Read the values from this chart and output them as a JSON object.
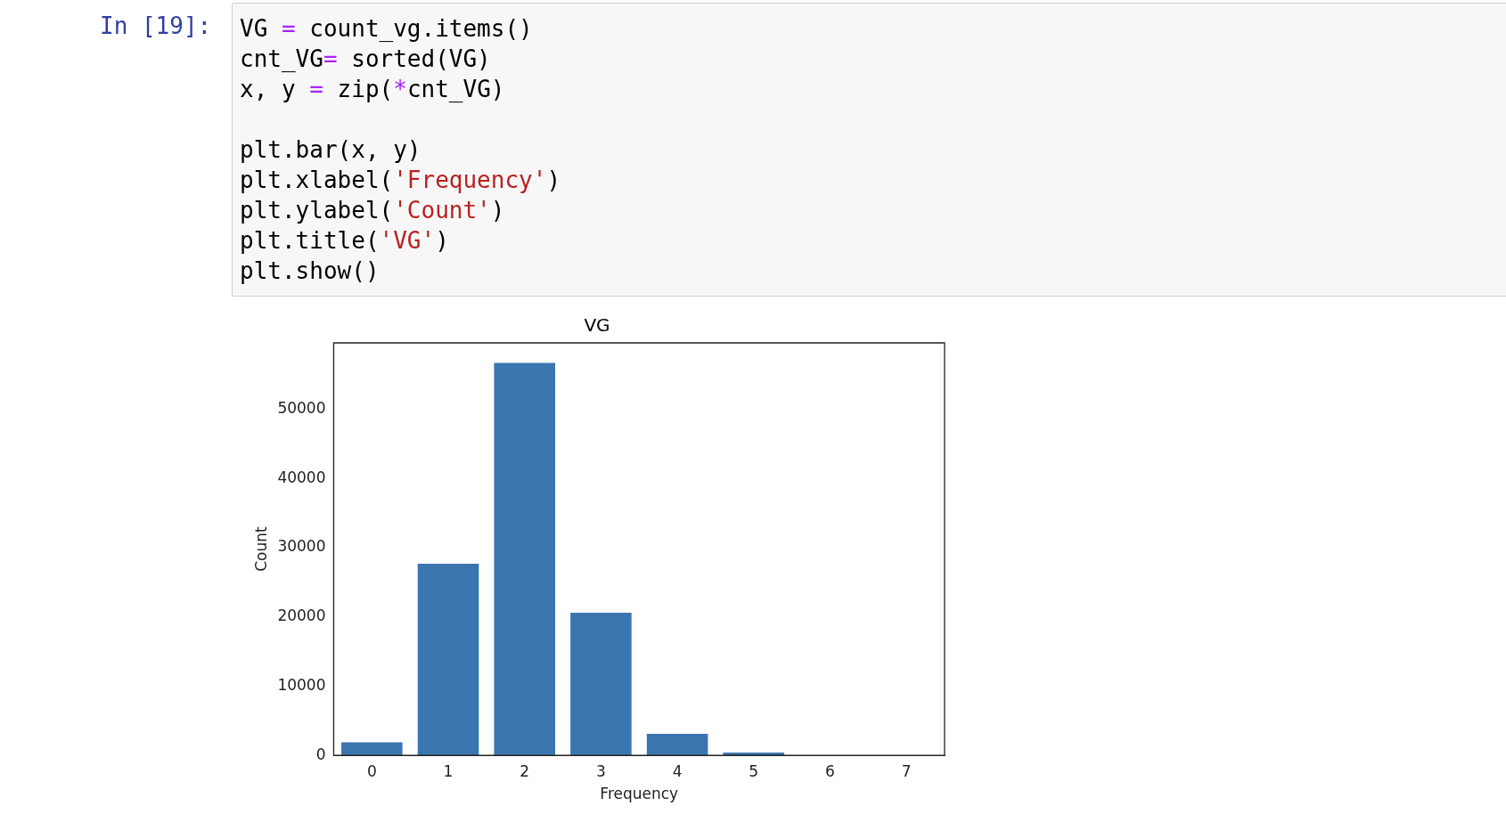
{
  "chart_data": {
    "type": "bar",
    "title": "VG",
    "xlabel": "Frequency",
    "ylabel": "Count",
    "categories": [
      "0",
      "1",
      "2",
      "3",
      "4",
      "5",
      "6",
      "7"
    ],
    "values": [
      1900,
      27700,
      56700,
      20600,
      3100,
      400,
      0,
      0
    ],
    "color": "#3a75af",
    "ylim": [
      0,
      59600
    ],
    "yticks": [
      0,
      10000,
      20000,
      30000,
      40000,
      50000
    ],
    "grid": false,
    "legend": false,
    "annotations": [
      "In [19]:",
      "VG = count_vg.items()\ncnt_VG= sorted(VG)\nx, y = zip(*cnt_VG)\n\nplt.bar(x, y)\nplt.xlabel('Frequency')\nplt.ylabel('Count')\nplt.title('VG')\nplt.show()"
    ]
  }
}
